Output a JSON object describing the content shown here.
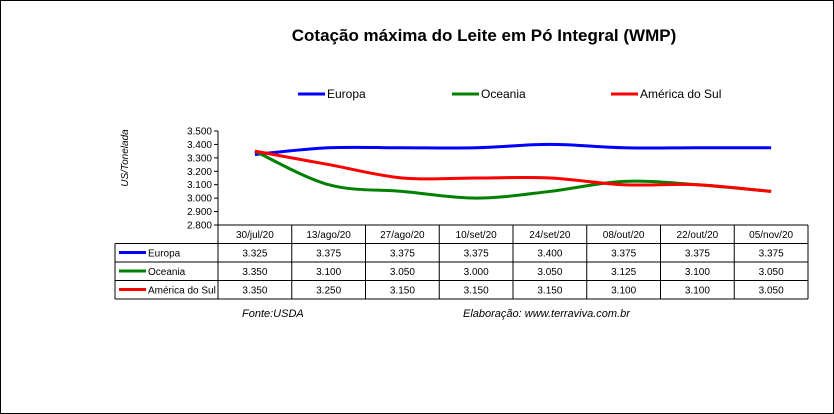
{
  "chart_data": {
    "type": "line",
    "title": "Cotação máxima do Leite em Pó Integral (WMP)",
    "ylabel": "US/Tonelada",
    "ylim": [
      2800,
      3500
    ],
    "yticks": [
      "3.500",
      "3.400",
      "3.300",
      "3.200",
      "3.100",
      "3.000",
      "2.900",
      "2.800"
    ],
    "grid": false,
    "legend_position": "top",
    "categories": [
      "30/jul/20",
      "13/ago/20",
      "27/ago/20",
      "10/set/20",
      "24/set/20",
      "08/out/20",
      "22/out/20",
      "05/nov/20"
    ],
    "series": [
      {
        "name": "Europa",
        "color": "#0000ff",
        "values": [
          3325,
          3375,
          3375,
          3375,
          3400,
          3375,
          3375,
          3375
        ],
        "labels": [
          "3.325",
          "3.375",
          "3.375",
          "3.375",
          "3.400",
          "3.375",
          "3.375",
          "3.375"
        ]
      },
      {
        "name": "Oceania",
        "color": "#008000",
        "values": [
          3350,
          3100,
          3050,
          3000,
          3050,
          3125,
          3100,
          3050
        ],
        "labels": [
          "3.350",
          "3.100",
          "3.050",
          "3.000",
          "3.050",
          "3.125",
          "3.100",
          "3.050"
        ]
      },
      {
        "name": "América do Sul",
        "color": "#ff0000",
        "values": [
          3350,
          3250,
          3150,
          3150,
          3150,
          3100,
          3100,
          3050
        ],
        "labels": [
          "3.350",
          "3.250",
          "3.150",
          "3.150",
          "3.150",
          "3.100",
          "3.100",
          "3.050"
        ]
      }
    ]
  },
  "footer": {
    "source": "Fonte:USDA",
    "credit": "Elaboração: www.terraviva.com.br"
  }
}
